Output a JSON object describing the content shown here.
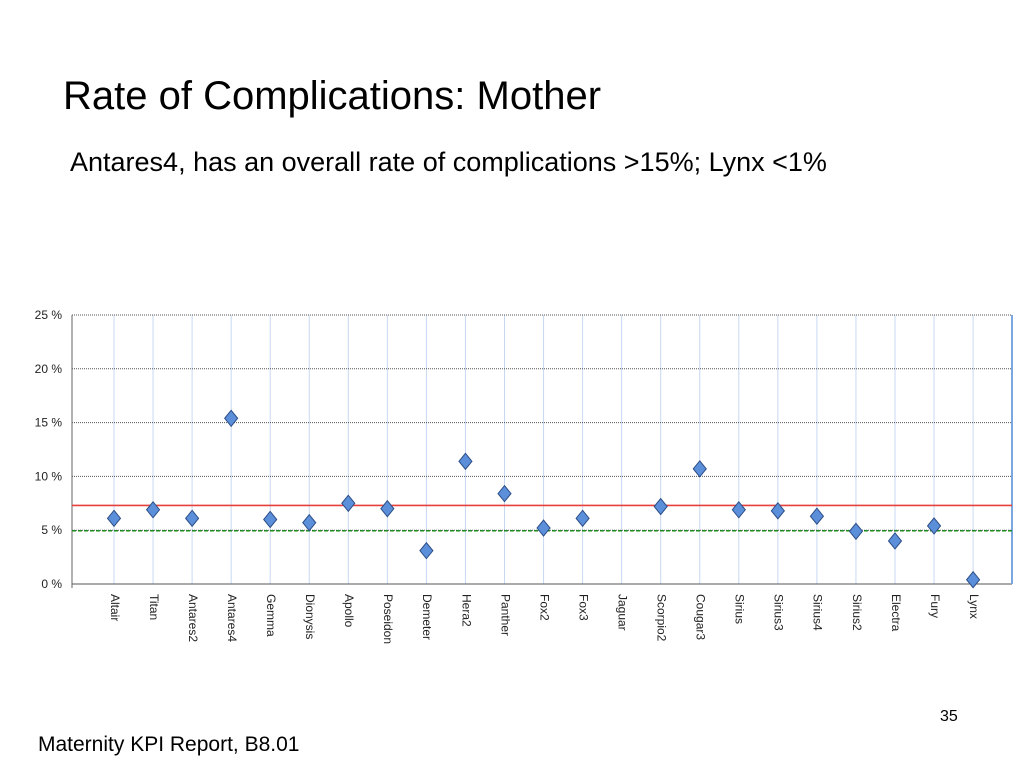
{
  "slide": {
    "title": "Rate of Complications: Mother",
    "subtitle": "Antares4, has an overall rate of complications >15%; Lynx <1%",
    "page_number": "35",
    "footer": "Maternity KPI Report, B8.01"
  },
  "chart_data": {
    "type": "scatter",
    "title": "",
    "xlabel": "",
    "ylabel": "",
    "categories": [
      "Altair",
      "Titan",
      "Antares2",
      "Antares4",
      "Gemma",
      "Dionysis",
      "Apollo",
      "Poseidon",
      "Demeter",
      "Hera2",
      "Panther",
      "Fox2",
      "Fox3",
      "Jaguar",
      "Scorpio2",
      "Cougar3",
      "Sirius",
      "Sirius3",
      "Sirius4",
      "Sirius2",
      "Electra",
      "Fury",
      "Lynx"
    ],
    "series": [
      {
        "values": [
          6.1,
          6.9,
          6.1,
          15.4,
          6.0,
          5.7,
          7.5,
          7.0,
          3.1,
          11.4,
          8.4,
          5.2,
          6.1,
          null,
          7.2,
          10.7,
          6.9,
          6.8,
          6.3,
          4.9,
          4.0,
          5.4,
          0.4
        ],
        "color": "#5b8fd9",
        "marker": "diamond"
      }
    ],
    "reference_lines": [
      {
        "value": 7.3,
        "color": "#e8413c",
        "style": "solid"
      },
      {
        "value": 4.95,
        "color": "#1f8a1f",
        "style": "dashed"
      }
    ],
    "ylim": [
      0,
      25
    ],
    "yticks": [
      0,
      5,
      10,
      15,
      20,
      25
    ],
    "ytick_labels": [
      "0 %",
      "5 %",
      "10 %",
      "15 %",
      "20 %",
      "25 %"
    ],
    "grid": true
  }
}
